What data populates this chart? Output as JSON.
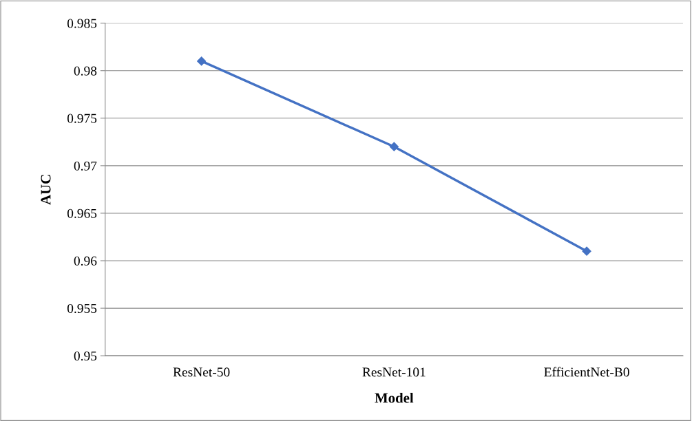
{
  "chart_data": {
    "type": "line",
    "xlabel": "Model",
    "ylabel": "AUC",
    "categories": [
      "ResNet-50",
      "ResNet-101",
      "EfficientNet-B0"
    ],
    "series": [
      {
        "color": "#4472c4",
        "values": [
          0.981,
          0.972,
          0.961
        ]
      }
    ],
    "ylim": [
      0.95,
      0.985
    ],
    "yticks": [
      0.95,
      0.955,
      0.96,
      0.965,
      0.97,
      0.975,
      0.98,
      0.985
    ],
    "grid": "y",
    "marker": "diamond",
    "line_style": "solid",
    "legend": false
  }
}
